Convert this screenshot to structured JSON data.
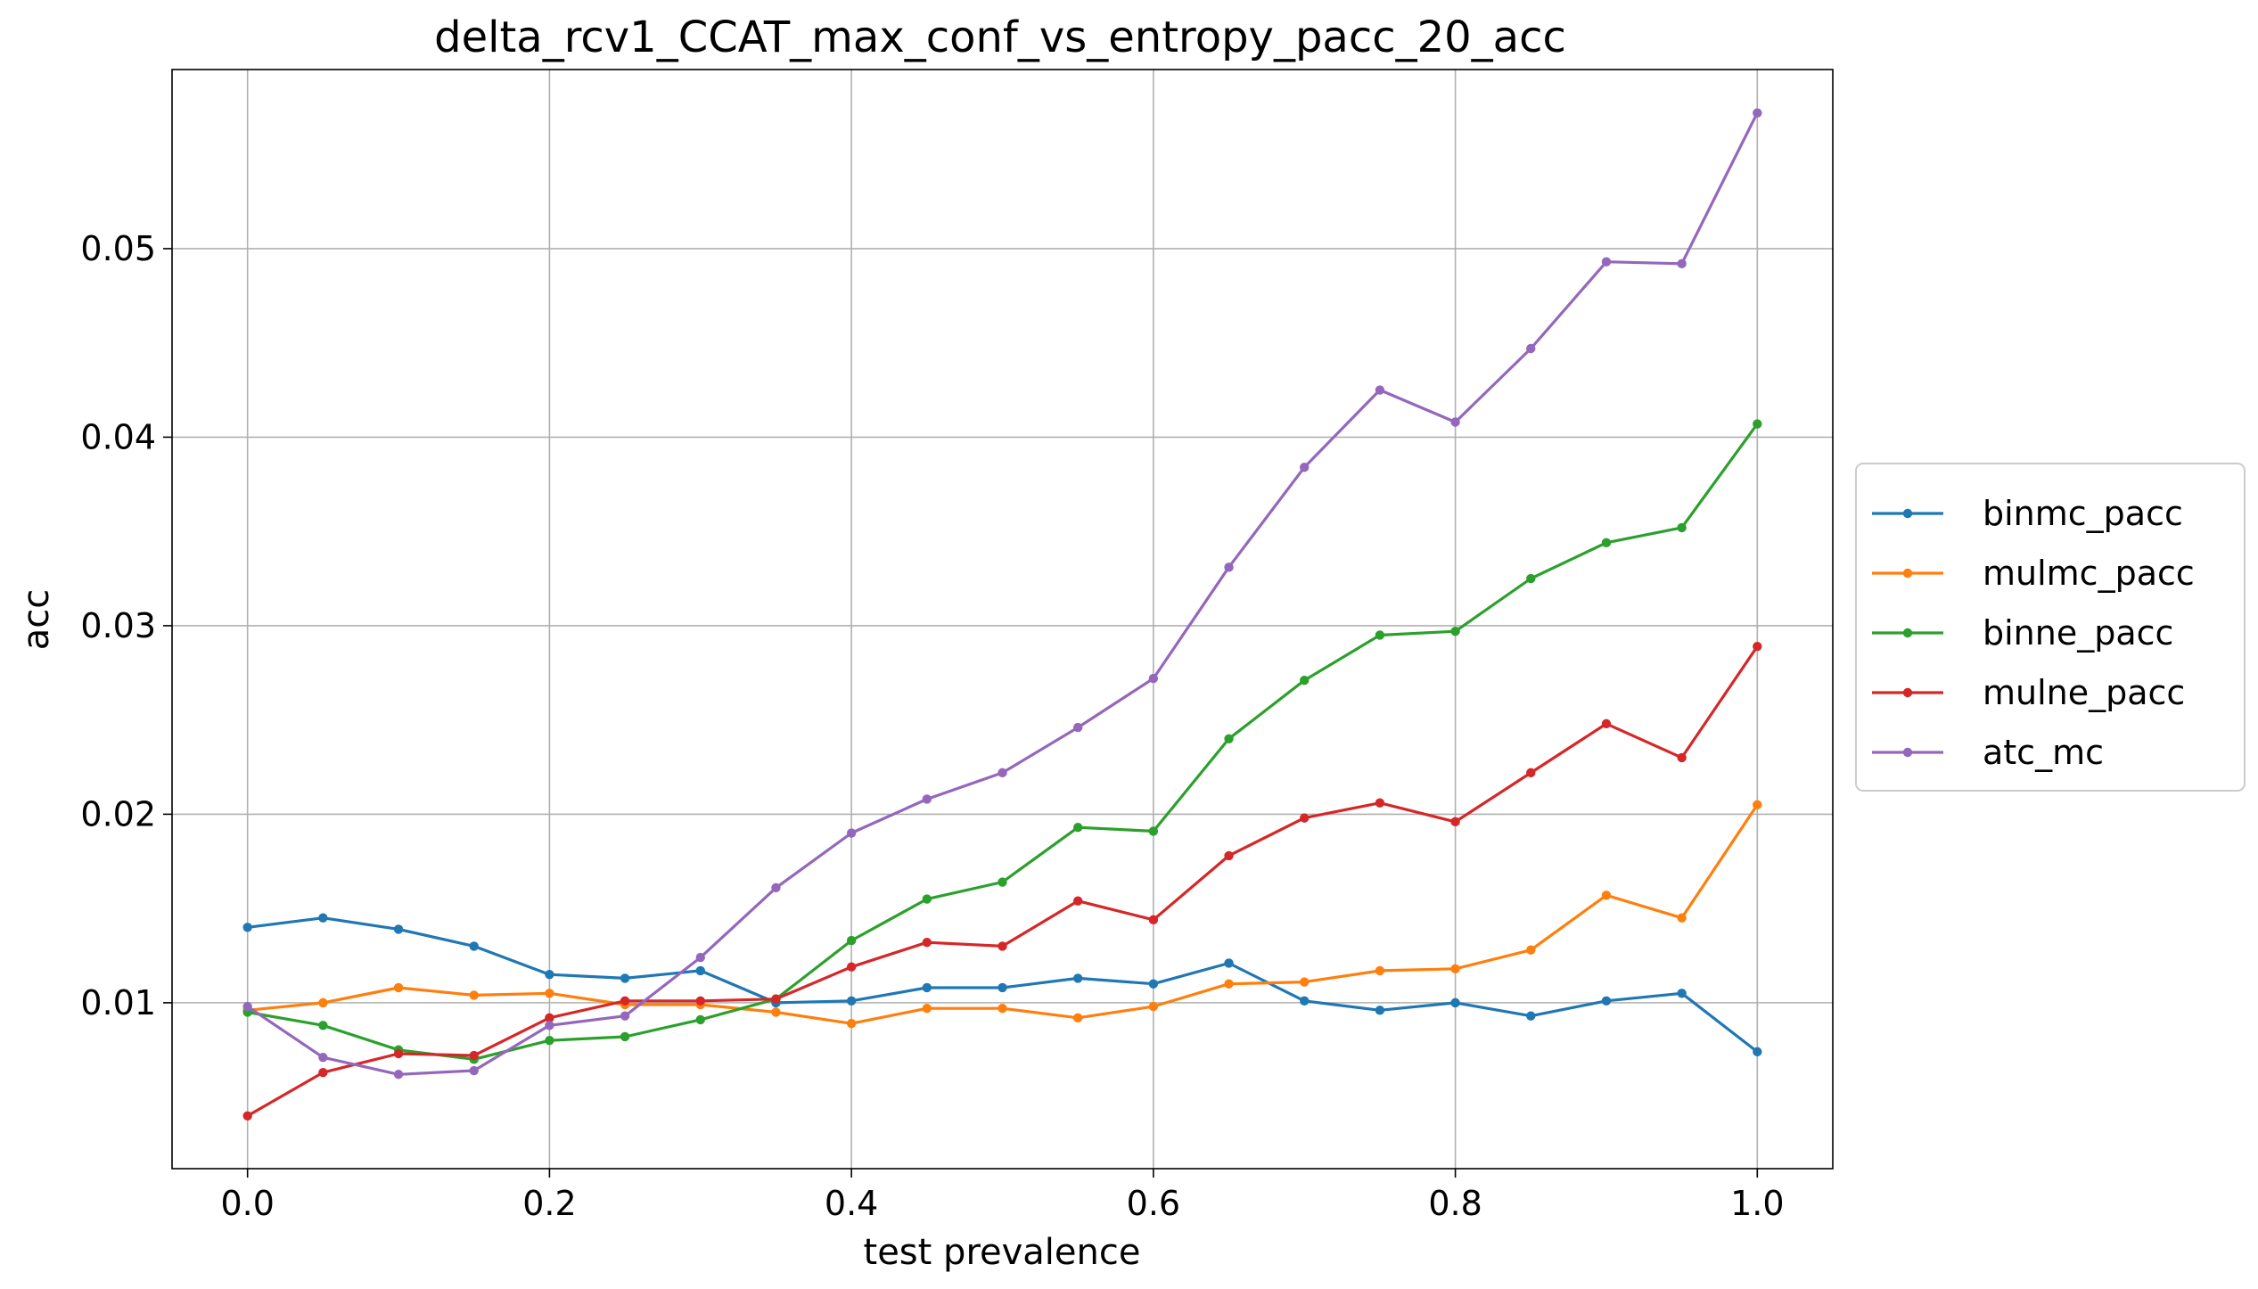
{
  "chart_data": {
    "type": "line",
    "title": "delta_rcv1_CCAT_max_conf_vs_entropy_pacc_20_acc",
    "xlabel": "test prevalence",
    "ylabel": "acc",
    "xlim": [
      -0.05,
      1.05
    ],
    "ylim": [
      0.0012,
      0.0595
    ],
    "xticks": [
      0.0,
      0.2,
      0.4,
      0.6,
      0.8,
      1.0
    ],
    "xtick_labels": [
      "0.0",
      "0.2",
      "0.4",
      "0.6",
      "0.8",
      "1.0"
    ],
    "yticks": [
      0.01,
      0.02,
      0.03,
      0.04,
      0.05
    ],
    "ytick_labels": [
      "0.01",
      "0.02",
      "0.03",
      "0.04",
      "0.05"
    ],
    "grid": true,
    "legend_position": "center-right-outside",
    "x": [
      0.0,
      0.05,
      0.1,
      0.15,
      0.2,
      0.25,
      0.3,
      0.35,
      0.4,
      0.45,
      0.5,
      0.55,
      0.6,
      0.65,
      0.7,
      0.75,
      0.8,
      0.85,
      0.9,
      0.95,
      1.0
    ],
    "series": [
      {
        "name": "binmc_pacc",
        "color": "#1f77b4",
        "values": [
          0.014,
          0.0145,
          0.0139,
          0.013,
          0.0115,
          0.0113,
          0.0117,
          0.01,
          0.0101,
          0.0108,
          0.0108,
          0.0113,
          0.011,
          0.0121,
          0.0101,
          0.0096,
          0.01,
          0.0093,
          0.0101,
          0.0105,
          0.0074
        ]
      },
      {
        "name": "mulmc_pacc",
        "color": "#ff7f0e",
        "values": [
          0.0096,
          0.01,
          0.0108,
          0.0104,
          0.0105,
          0.0099,
          0.0099,
          0.0095,
          0.0089,
          0.0097,
          0.0097,
          0.0092,
          0.0098,
          0.011,
          0.0111,
          0.0117,
          0.0118,
          0.0128,
          0.0157,
          0.0145,
          0.0205
        ]
      },
      {
        "name": "binne_pacc",
        "color": "#2ca02c",
        "values": [
          0.0095,
          0.0088,
          0.0075,
          0.007,
          0.008,
          0.0082,
          0.0091,
          0.0102,
          0.0133,
          0.0155,
          0.0164,
          0.0193,
          0.0191,
          0.024,
          0.0271,
          0.0295,
          0.0297,
          0.0325,
          0.0344,
          0.0352,
          0.0407
        ]
      },
      {
        "name": "mulne_pacc",
        "color": "#d62728",
        "values": [
          0.004,
          0.0063,
          0.0073,
          0.0072,
          0.0092,
          0.0101,
          0.0101,
          0.0102,
          0.0119,
          0.0132,
          0.013,
          0.0154,
          0.0144,
          0.0178,
          0.0198,
          0.0206,
          0.0196,
          0.0222,
          0.0248,
          0.023,
          0.0289
        ]
      },
      {
        "name": "atc_mc",
        "color": "#9467bd",
        "values": [
          0.0098,
          0.0071,
          0.0062,
          0.0064,
          0.0088,
          0.0093,
          0.0124,
          0.0161,
          0.019,
          0.0208,
          0.0222,
          0.0246,
          0.0272,
          0.0331,
          0.0384,
          0.0425,
          0.0408,
          0.0447,
          0.0493,
          0.0492,
          0.0572
        ]
      }
    ]
  }
}
